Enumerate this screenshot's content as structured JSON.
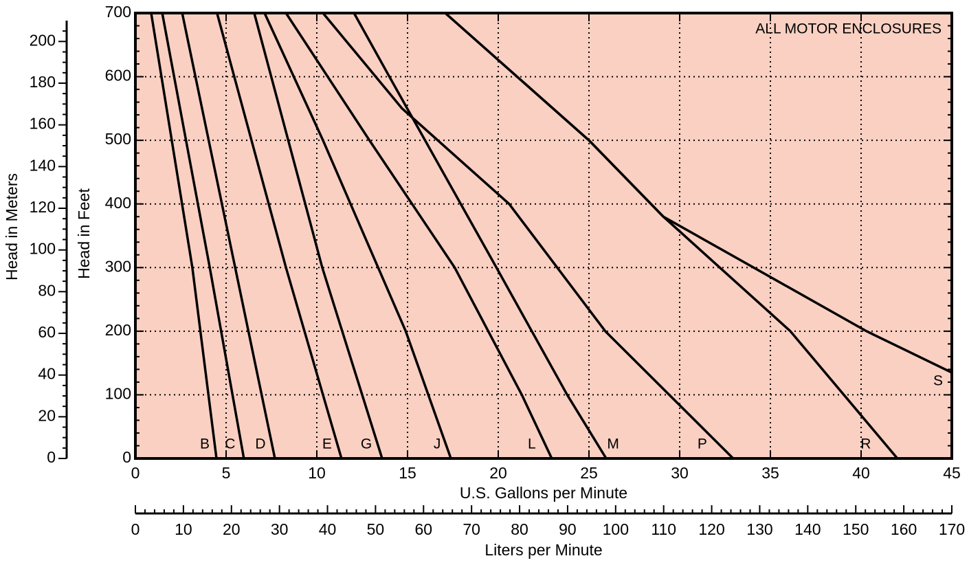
{
  "chart_data": {
    "type": "line",
    "annotation": "ALL MOTOR ENCLOSURES",
    "xlabel": "U.S. Gallons per Minute",
    "ylabel": "Head in Feet",
    "y2label": "Head in Meters",
    "x2label": "Liters per Minute",
    "xlim": [
      0,
      45
    ],
    "xticks": [
      0,
      5,
      10,
      15,
      20,
      25,
      30,
      35,
      40,
      45
    ],
    "ylim": [
      0,
      700
    ],
    "yticks": [
      0,
      100,
      200,
      300,
      400,
      500,
      600,
      700
    ],
    "y2lim": [
      0,
      210
    ],
    "y2ticks": [
      0,
      20,
      40,
      60,
      80,
      100,
      120,
      140,
      160,
      180,
      200
    ],
    "x2lim": [
      0,
      170
    ],
    "x2ticks": [
      0,
      10,
      20,
      30,
      40,
      50,
      60,
      70,
      80,
      90,
      100,
      110,
      120,
      130,
      140,
      150,
      160,
      170
    ],
    "grid": true,
    "background": "#f9d0c2",
    "series": [
      {
        "name": "B",
        "color": "#000000",
        "x": [
          0.87,
          3.14,
          4.47
        ],
        "values": [
          700,
          300,
          0
        ]
      },
      {
        "name": "C",
        "color": "#000000",
        "x": [
          1.48,
          4.1,
          5.98
        ],
        "values": [
          700,
          300,
          0
        ]
      },
      {
        "name": "D",
        "color": "#000000",
        "x": [
          2.58,
          5.5,
          7.69
        ],
        "values": [
          700,
          300,
          0
        ]
      },
      {
        "name": "E",
        "color": "#000000",
        "x": [
          4.5,
          8.3,
          11.36
        ],
        "values": [
          700,
          300,
          0
        ]
      },
      {
        "name": "G",
        "color": "#000000",
        "x": [
          6.55,
          10.3,
          13.6
        ],
        "values": [
          700,
          300,
          0
        ]
      },
      {
        "name": "J",
        "color": "#000000",
        "x": [
          7.12,
          10.34,
          14.9,
          17.39
        ],
        "values": [
          700,
          500,
          200,
          0
        ]
      },
      {
        "name": "L",
        "color": "#000000",
        "x": [
          8.3,
          12.9,
          17.6,
          21.3,
          22.95
        ],
        "values": [
          700,
          500,
          300,
          100,
          0
        ]
      },
      {
        "name": "M",
        "color": "#000000",
        "x": [
          12.05,
          14.0,
          19.9,
          23.8,
          25.95
        ],
        "values": [
          700,
          600,
          300,
          100,
          0
        ]
      },
      {
        "name": "P",
        "color": "#000000",
        "x": [
          10.34,
          14.7,
          20.6,
          25.9,
          32.95
        ],
        "values": [
          700,
          550,
          400,
          200,
          0
        ]
      },
      {
        "name": "R",
        "color": "#000000",
        "x": [
          17.08,
          25.0,
          29.1,
          36.1,
          42.0
        ],
        "values": [
          700,
          500,
          380,
          200,
          0
        ]
      },
      {
        "name": "S",
        "color": "#000000",
        "x": [
          17.08,
          25.0,
          29.1,
          40.3,
          45
        ],
        "values": [
          700,
          500,
          380,
          200,
          135
        ]
      }
    ]
  }
}
